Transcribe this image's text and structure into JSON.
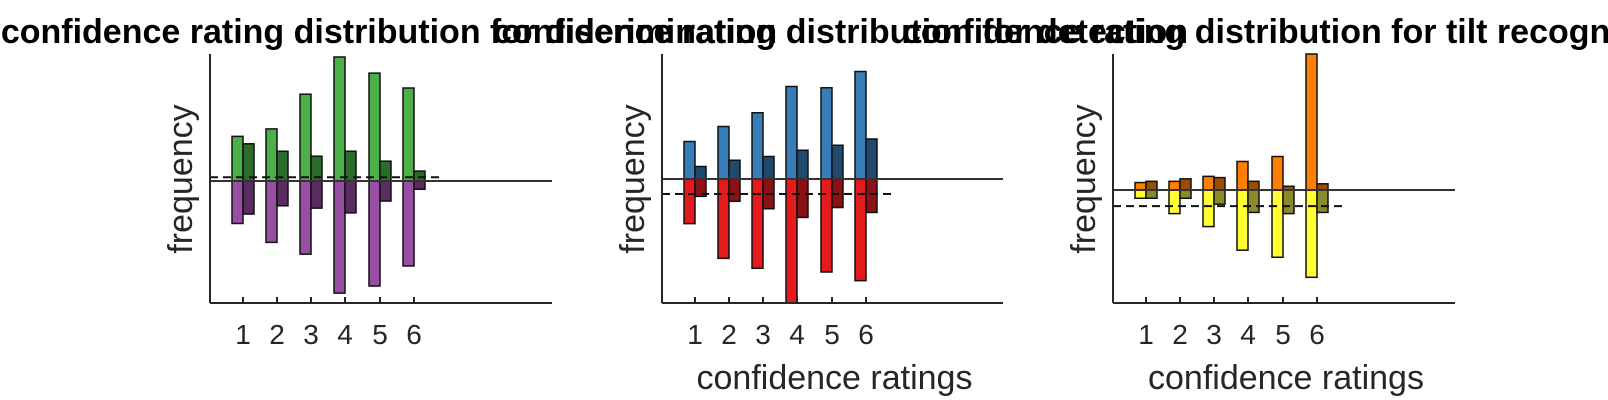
{
  "chart_data": [
    {
      "type": "bar",
      "title": "confidence rating distribution for discrimination",
      "ylabel": "frequency",
      "xlabel": "",
      "categories": [
        "1",
        "2",
        "3",
        "4",
        "5",
        "6"
      ],
      "upper_series": [
        {
          "values": [
            0.36,
            0.42,
            0.7,
            1.0,
            0.87,
            0.75
          ],
          "color": "#4daf4a"
        },
        {
          "values": [
            0.3,
            0.24,
            0.2,
            0.24,
            0.16,
            0.08
          ],
          "color": "#2c6b2a"
        }
      ],
      "lower_series": [
        {
          "values": [
            0.36,
            0.52,
            0.62,
            0.95,
            0.89,
            0.72
          ],
          "color": "#984ea3"
        },
        {
          "values": [
            0.28,
            0.21,
            0.23,
            0.27,
            0.17,
            0.07
          ],
          "color": "#5a2c61"
        }
      ],
      "dashed_line": 0.03,
      "ylim": [
        -1,
        1
      ]
    },
    {
      "type": "bar",
      "title": "confidence rating distribution for detection",
      "ylabel": "frequency",
      "xlabel": "confidence ratings",
      "categories": [
        "1",
        "2",
        "3",
        "4",
        "5",
        "6"
      ],
      "upper_series": [
        {
          "values": [
            0.3,
            0.42,
            0.53,
            0.74,
            0.73,
            0.86
          ],
          "color": "#377eb8"
        },
        {
          "values": [
            0.1,
            0.15,
            0.18,
            0.23,
            0.27,
            0.32
          ],
          "color": "#1f4a6d"
        }
      ],
      "lower_series": [
        {
          "values": [
            0.36,
            0.64,
            0.72,
            1.0,
            0.75,
            0.82
          ],
          "color": "#e41a1c"
        },
        {
          "values": [
            0.14,
            0.18,
            0.24,
            0.31,
            0.23,
            0.27
          ],
          "color": "#8b1114"
        }
      ],
      "dashed_line": -0.12,
      "ylim": [
        -1,
        1
      ]
    },
    {
      "type": "bar",
      "title": "confidence rating distribution for tilt recognition",
      "ylabel": "frequency",
      "xlabel": "confidence ratings",
      "categories": [
        "1",
        "2",
        "3",
        "4",
        "5",
        "6"
      ],
      "upper_series": [
        {
          "values": [
            0.06,
            0.07,
            0.11,
            0.23,
            0.27,
            1.12
          ],
          "color": "#ff7f00"
        },
        {
          "values": [
            0.07,
            0.09,
            0.1,
            0.07,
            0.03,
            0.05
          ],
          "color": "#9a4d00"
        }
      ],
      "lower_series": [
        {
          "values": [
            0.07,
            0.2,
            0.31,
            0.51,
            0.57,
            0.74
          ],
          "color": "#ffff33"
        },
        {
          "values": [
            0.07,
            0.07,
            0.12,
            0.19,
            0.2,
            0.19
          ],
          "color": "#8a8a2a"
        }
      ],
      "dashed_line": -0.13,
      "ylim": [
        -1,
        1
      ]
    }
  ]
}
